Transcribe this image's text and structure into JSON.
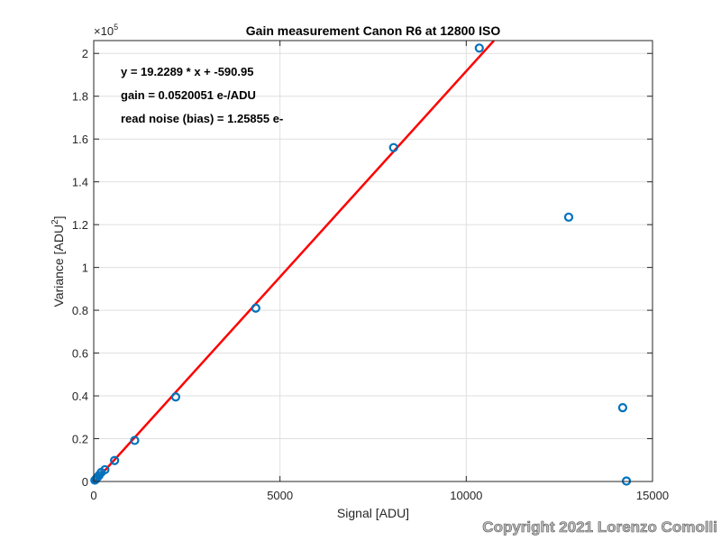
{
  "chart_data": {
    "type": "scatter",
    "title": "Gain measurement Canon R6 at 12800 ISO",
    "xlabel": "Signal [ADU]",
    "ylabel_main": "Variance [ADU",
    "ylabel_sup": "2",
    "ylabel_close": "]",
    "xlim": [
      0,
      15000
    ],
    "ylim": [
      0,
      206000
    ],
    "y_exponent_base": "×10",
    "y_exponent_power": "5",
    "x_ticks": [
      0,
      5000,
      10000,
      15000
    ],
    "x_tick_labels": [
      "0",
      "5000",
      "10000",
      "15000"
    ],
    "y_ticks": [
      0,
      20000,
      40000,
      60000,
      80000,
      100000,
      120000,
      140000,
      160000,
      180000,
      200000
    ],
    "y_tick_labels": [
      "0",
      "0.2",
      "0.4",
      "0.6",
      "0.8",
      "1",
      "1.2",
      "1.4",
      "1.6",
      "1.8",
      "2"
    ],
    "grid": true,
    "series": [
      {
        "kind": "points",
        "color": "#0072BD",
        "x": [
          30,
          60,
          100,
          140,
          200,
          300,
          560,
          1100,
          2200,
          4350,
          8050,
          10350,
          12750,
          14200,
          14300
        ],
        "y": [
          600,
          1100,
          2000,
          2800,
          4200,
          5500,
          9800,
          19200,
          39500,
          81000,
          156000,
          202500,
          123500,
          34500,
          200
        ]
      },
      {
        "kind": "fit-line",
        "color": "#FF0000",
        "slope": 19.2289,
        "intercept": -590.95
      }
    ],
    "annotations": [
      "y = 19.2289 * x + -590.95",
      "gain = 0.0520051 e-/ADU",
      "read noise (bias) = 1.25855 e-"
    ]
  },
  "watermark": "Copyright 2021 Lorenzo Comolli"
}
